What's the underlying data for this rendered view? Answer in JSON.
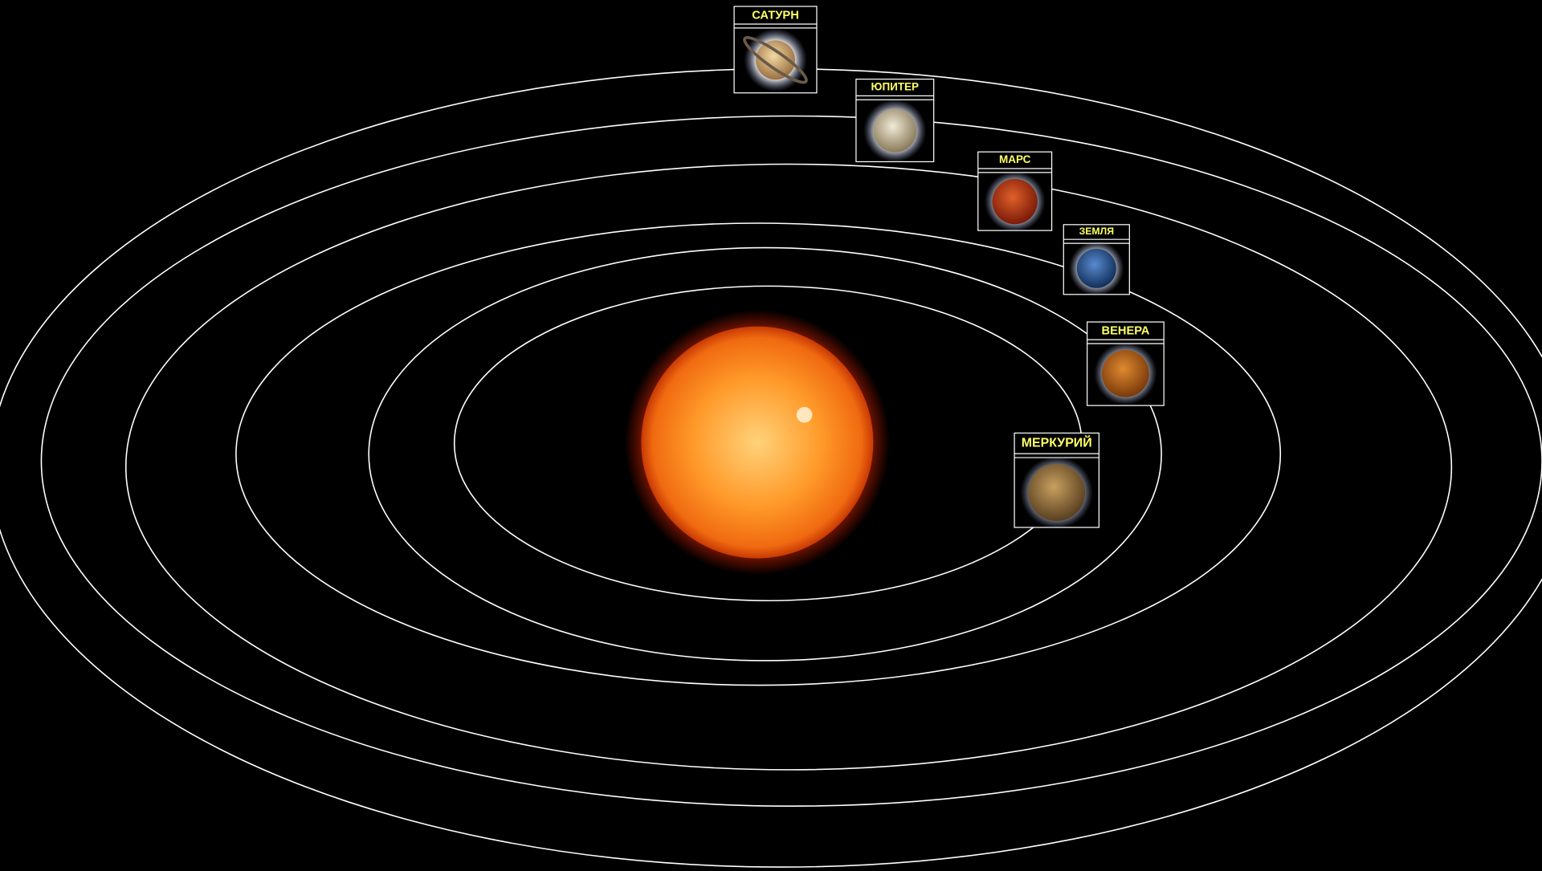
{
  "planets": [
    {
      "label": "САТУРН"
    },
    {
      "label": "ЮПИТЕР"
    },
    {
      "label": "МАРС"
    },
    {
      "label": "ЗЕМЛЯ"
    },
    {
      "label": "ВЕНЕРА"
    },
    {
      "label": "МЕРКУРИЙ"
    }
  ]
}
